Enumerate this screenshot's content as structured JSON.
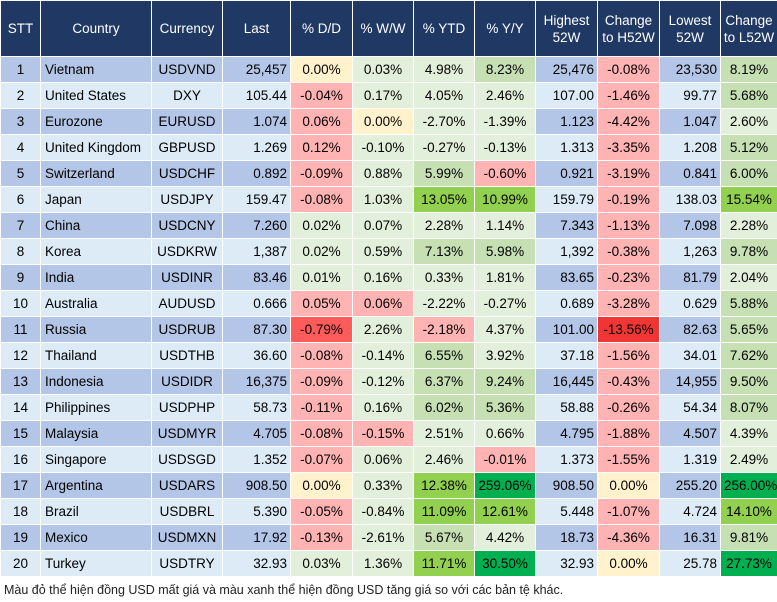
{
  "headers": [
    "STT",
    "Country",
    "Currency",
    "Last",
    "% D/D",
    "% W/W",
    "% YTD",
    "% Y/Y",
    "Highest 52W",
    "Change to H52W",
    "Lowest 52W",
    "Change to L52W"
  ],
  "palette": {
    "odd": "#b4c6e7",
    "even": "#ddebf7",
    "p": "#ffb3b3",
    "l": "#e2efda",
    "m": "#c6e0b4",
    "g": "#92d050",
    "d": "#00b050",
    "y": "#fff2cc",
    "r": "#ff5b5b",
    "R": "#f03535"
  },
  "rows": [
    {
      "cells": [
        "1",
        "Vietnam",
        "USDVND",
        "25,457",
        "0.00%",
        "0.03%",
        "4.98%",
        "8.23%",
        "25,476",
        "-0.08%",
        "23,530",
        "8.19%"
      ],
      "colors": [
        "y",
        "l",
        "l",
        "m",
        "p",
        "m"
      ]
    },
    {
      "cells": [
        "2",
        "United States",
        "DXY",
        "105.44",
        "-0.04%",
        "0.17%",
        "4.05%",
        "2.46%",
        "107.00",
        "-1.46%",
        "99.77",
        "5.68%"
      ],
      "colors": [
        "p",
        "l",
        "l",
        "l",
        "p",
        "m"
      ]
    },
    {
      "cells": [
        "3",
        "Eurozone",
        "EURUSD",
        "1.074",
        "0.06%",
        "0.00%",
        "-2.70%",
        "-1.39%",
        "1.123",
        "-4.42%",
        "1.047",
        "2.60%"
      ],
      "colors": [
        "p",
        "y",
        "l",
        "l",
        "p",
        "l"
      ]
    },
    {
      "cells": [
        "4",
        "United Kingdom",
        "GBPUSD",
        "1.269",
        "0.12%",
        "-0.10%",
        "-0.27%",
        "-0.13%",
        "1.313",
        "-3.35%",
        "1.208",
        "5.12%"
      ],
      "colors": [
        "p",
        "l",
        "l",
        "l",
        "p",
        "m"
      ]
    },
    {
      "cells": [
        "5",
        "Switzerland",
        "USDCHF",
        "0.892",
        "-0.09%",
        "0.88%",
        "5.99%",
        "-0.60%",
        "0.921",
        "-3.19%",
        "0.841",
        "6.00%"
      ],
      "colors": [
        "p",
        "l",
        "m",
        "p",
        "p",
        "m"
      ]
    },
    {
      "cells": [
        "6",
        "Japan",
        "USDJPY",
        "159.47",
        "-0.08%",
        "1.03%",
        "13.05%",
        "10.99%",
        "159.79",
        "-0.19%",
        "138.03",
        "15.54%"
      ],
      "colors": [
        "p",
        "l",
        "g",
        "g",
        "p",
        "g"
      ]
    },
    {
      "cells": [
        "7",
        "China",
        "USDCNY",
        "7.260",
        "0.02%",
        "0.07%",
        "2.28%",
        "1.14%",
        "7.343",
        "-1.13%",
        "7.098",
        "2.28%"
      ],
      "colors": [
        "l",
        "l",
        "l",
        "l",
        "p",
        "l"
      ]
    },
    {
      "cells": [
        "8",
        "Korea",
        "USDKRW",
        "1,387",
        "0.02%",
        "0.59%",
        "7.13%",
        "5.98%",
        "1,392",
        "-0.38%",
        "1,263",
        "9.78%"
      ],
      "colors": [
        "l",
        "l",
        "m",
        "m",
        "p",
        "m"
      ]
    },
    {
      "cells": [
        "9",
        "India",
        "USDINR",
        "83.46",
        "0.01%",
        "0.16%",
        "0.33%",
        "1.81%",
        "83.65",
        "-0.23%",
        "81.79",
        "2.04%"
      ],
      "colors": [
        "l",
        "l",
        "l",
        "l",
        "p",
        "l"
      ]
    },
    {
      "cells": [
        "10",
        "Australia",
        "AUDUSD",
        "0.666",
        "0.05%",
        "0.06%",
        "-2.22%",
        "-0.27%",
        "0.689",
        "-3.28%",
        "0.629",
        "5.88%"
      ],
      "colors": [
        "p",
        "p",
        "l",
        "l",
        "p",
        "m"
      ]
    },
    {
      "cells": [
        "11",
        "Russia",
        "USDRUB",
        "87.30",
        "-0.79%",
        "2.26%",
        "-2.18%",
        "4.37%",
        "101.00",
        "-13.56%",
        "82.63",
        "5.65%"
      ],
      "colors": [
        "r",
        "l",
        "p",
        "l",
        "R",
        "m"
      ]
    },
    {
      "cells": [
        "12",
        "Thailand",
        "USDTHB",
        "36.60",
        "-0.08%",
        "-0.14%",
        "6.55%",
        "3.92%",
        "37.18",
        "-1.56%",
        "34.01",
        "7.62%"
      ],
      "colors": [
        "p",
        "l",
        "m",
        "l",
        "p",
        "m"
      ]
    },
    {
      "cells": [
        "13",
        "Indonesia",
        "USDIDR",
        "16,375",
        "-0.09%",
        "-0.12%",
        "6.37%",
        "9.24%",
        "16,445",
        "-0.43%",
        "14,955",
        "9.50%"
      ],
      "colors": [
        "p",
        "l",
        "m",
        "m",
        "p",
        "m"
      ]
    },
    {
      "cells": [
        "14",
        "Philippines",
        "USDPHP",
        "58.73",
        "-0.11%",
        "0.16%",
        "6.02%",
        "5.36%",
        "58.88",
        "-0.26%",
        "54.34",
        "8.07%"
      ],
      "colors": [
        "p",
        "l",
        "m",
        "m",
        "p",
        "m"
      ]
    },
    {
      "cells": [
        "15",
        "Malaysia",
        "USDMYR",
        "4.705",
        "-0.08%",
        "-0.15%",
        "2.51%",
        "0.66%",
        "4.795",
        "-1.88%",
        "4.507",
        "4.39%"
      ],
      "colors": [
        "p",
        "p",
        "l",
        "l",
        "p",
        "l"
      ]
    },
    {
      "cells": [
        "16",
        "Singapore",
        "USDSGD",
        "1.352",
        "-0.07%",
        "0.06%",
        "2.46%",
        "-0.01%",
        "1.373",
        "-1.55%",
        "1.319",
        "2.49%"
      ],
      "colors": [
        "p",
        "l",
        "l",
        "p",
        "p",
        "l"
      ]
    },
    {
      "cells": [
        "17",
        "Argentina",
        "USDARS",
        "908.50",
        "0.00%",
        "0.33%",
        "12.38%",
        "259.06%",
        "908.50",
        "0.00%",
        "255.20",
        "256.00%"
      ],
      "colors": [
        "y",
        "l",
        "g",
        "d",
        "y",
        "d"
      ]
    },
    {
      "cells": [
        "18",
        "Brazil",
        "USDBRL",
        "5.390",
        "-0.05%",
        "-0.84%",
        "11.09%",
        "12.61%",
        "5.448",
        "-1.07%",
        "4.724",
        "14.10%"
      ],
      "colors": [
        "p",
        "l",
        "g",
        "g",
        "p",
        "g"
      ]
    },
    {
      "cells": [
        "19",
        "Mexico",
        "USDMXN",
        "17.92",
        "-0.13%",
        "-2.61%",
        "5.67%",
        "4.42%",
        "18.73",
        "-4.36%",
        "16.31",
        "9.81%"
      ],
      "colors": [
        "p",
        "l",
        "m",
        "l",
        "p",
        "m"
      ]
    },
    {
      "cells": [
        "20",
        "Turkey",
        "USDTRY",
        "32.93",
        "0.03%",
        "1.36%",
        "11.71%",
        "30.50%",
        "32.93",
        "0.00%",
        "25.78",
        "27.73%"
      ],
      "colors": [
        "l",
        "l",
        "g",
        "d",
        "y",
        "d"
      ]
    }
  ],
  "footnote": "Màu đỏ thể hiện đồng USD mất giá và màu xanh thể hiện đồng USD tăng giá so với các bản tệ khác."
}
